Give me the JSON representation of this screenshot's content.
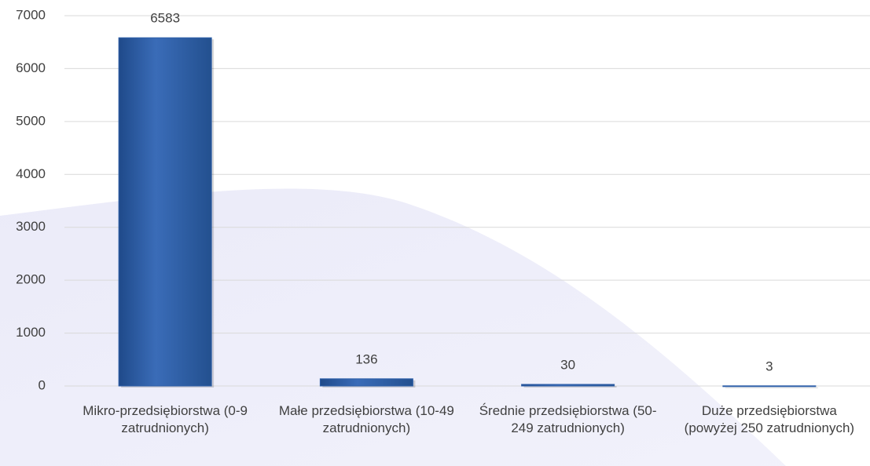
{
  "chart_data": {
    "type": "bar",
    "categories": [
      "Mikro-przedsiębiorstwa (0-9 zatrudnionych)",
      "Małe przedsiębiorstwa (10-49 zatrudnionych)",
      "Średnie przedsiębiorstwa (50-249 zatrudnionych)",
      "Duże przedsiębiorstwa (powyżej 250 zatrudnionych)"
    ],
    "values": [
      6583,
      136,
      30,
      3
    ],
    "color": "#2e5fa8",
    "ylim": [
      0,
      7000
    ],
    "yticks": [
      0,
      1000,
      2000,
      3000,
      4000,
      5000,
      6000,
      7000
    ],
    "grid": true
  }
}
